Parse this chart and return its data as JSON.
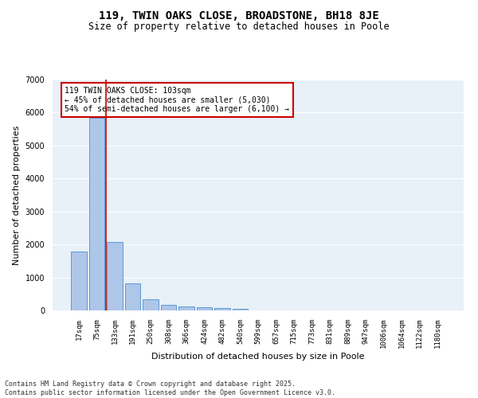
{
  "title1": "119, TWIN OAKS CLOSE, BROADSTONE, BH18 8JE",
  "title2": "Size of property relative to detached houses in Poole",
  "xlabel": "Distribution of detached houses by size in Poole",
  "ylabel": "Number of detached properties",
  "categories": [
    "17sqm",
    "75sqm",
    "133sqm",
    "191sqm",
    "250sqm",
    "308sqm",
    "366sqm",
    "424sqm",
    "482sqm",
    "540sqm",
    "599sqm",
    "657sqm",
    "715sqm",
    "773sqm",
    "831sqm",
    "889sqm",
    "947sqm",
    "1006sqm",
    "1064sqm",
    "1122sqm",
    "1180sqm"
  ],
  "values": [
    1780,
    5850,
    2080,
    820,
    350,
    175,
    110,
    90,
    75,
    55,
    0,
    0,
    0,
    0,
    0,
    0,
    0,
    0,
    0,
    0,
    0
  ],
  "bar_color": "#aec6e8",
  "bar_edgecolor": "#5b9bd5",
  "vline_x": 1.5,
  "vline_color": "#cc0000",
  "annotation_text": "119 TWIN OAKS CLOSE: 103sqm\n← 45% of detached houses are smaller (5,030)\n54% of semi-detached houses are larger (6,100) →",
  "annotation_box_edgecolor": "#cc0000",
  "annotation_box_facecolor": "#ffffff",
  "bg_color": "#e8f0f8",
  "grid_color": "#ffffff",
  "ylim": [
    0,
    7000
  ],
  "yticks": [
    0,
    1000,
    2000,
    3000,
    4000,
    5000,
    6000,
    7000
  ],
  "footnote": "Contains HM Land Registry data © Crown copyright and database right 2025.\nContains public sector information licensed under the Open Government Licence v3.0.",
  "title_fontsize": 10,
  "subtitle_fontsize": 8.5,
  "tick_fontsize": 6.5,
  "ylabel_fontsize": 8,
  "xlabel_fontsize": 8,
  "annot_fontsize": 7
}
